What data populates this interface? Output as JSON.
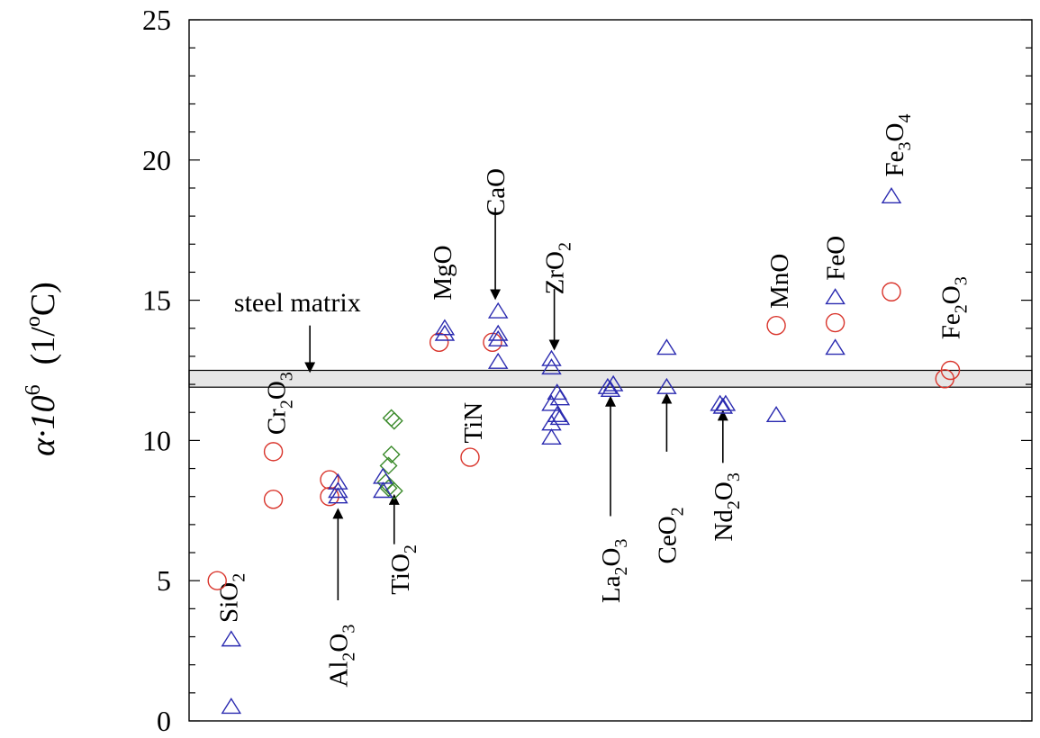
{
  "chart_data": {
    "type": "scatter",
    "title": "",
    "xlabel": "",
    "ylabel": {
      "prefix": "α·10",
      "exponent": "6",
      "unit_open": "(1/",
      "unit_super": "o",
      "unit_close": "C)"
    },
    "ylim": [
      0,
      25
    ],
    "y_ticks": [
      "0",
      "5",
      "10",
      "15",
      "20",
      "25"
    ],
    "grid": false,
    "legend": "none",
    "band": {
      "label": "steel matrix",
      "range": [
        11.9,
        12.5
      ],
      "color": "#e6e6e6"
    },
    "colors": {
      "circle": "#d9342b",
      "triangle": "#2a2ab0",
      "diamond": "#3a8a2a",
      "axis": "#000000"
    },
    "groups": [
      {
        "name": "SiO",
        "sub": "2",
        "points": [
          {
            "x": 1.0,
            "y": 5.0,
            "marker": "circle"
          },
          {
            "x": 1.25,
            "y": 2.9,
            "marker": "triangle"
          },
          {
            "x": 1.25,
            "y": 0.5,
            "marker": "triangle"
          }
        ]
      },
      {
        "name": "Cr",
        "sub": "2",
        "name2": "O",
        "sub2": "3",
        "points": [
          {
            "x": 2.0,
            "y": 9.6,
            "marker": "circle"
          },
          {
            "x": 2.0,
            "y": 7.9,
            "marker": "circle"
          }
        ]
      },
      {
        "name": "Al",
        "sub": "2",
        "name2": "O",
        "sub2": "3",
        "points": [
          {
            "x": 3.0,
            "y": 8.6,
            "marker": "circle"
          },
          {
            "x": 3.0,
            "y": 8.0,
            "marker": "circle"
          },
          {
            "x": 3.15,
            "y": 8.5,
            "marker": "triangle"
          },
          {
            "x": 3.15,
            "y": 8.2,
            "marker": "triangle"
          },
          {
            "x": 3.15,
            "y": 8.0,
            "marker": "triangle"
          }
        ]
      },
      {
        "name": "TiO",
        "sub": "2",
        "points": [
          {
            "x": 4.1,
            "y": 10.8,
            "marker": "diamond"
          },
          {
            "x": 4.15,
            "y": 10.7,
            "marker": "diamond"
          },
          {
            "x": 4.1,
            "y": 9.5,
            "marker": "diamond"
          },
          {
            "x": 4.05,
            "y": 9.1,
            "marker": "diamond"
          },
          {
            "x": 4.0,
            "y": 8.5,
            "marker": "diamond"
          },
          {
            "x": 4.05,
            "y": 8.3,
            "marker": "diamond"
          },
          {
            "x": 4.15,
            "y": 8.2,
            "marker": "diamond"
          },
          {
            "x": 3.95,
            "y": 8.7,
            "marker": "triangle"
          },
          {
            "x": 3.95,
            "y": 8.2,
            "marker": "triangle"
          }
        ]
      },
      {
        "name": "MgO",
        "points": [
          {
            "x": 4.95,
            "y": 13.5,
            "marker": "circle"
          },
          {
            "x": 5.05,
            "y": 14.0,
            "marker": "triangle"
          },
          {
            "x": 5.05,
            "y": 13.8,
            "marker": "triangle"
          }
        ]
      },
      {
        "name": "TiN",
        "points": [
          {
            "x": 5.5,
            "y": 9.4,
            "marker": "circle"
          }
        ]
      },
      {
        "name": "CaO",
        "points": [
          {
            "x": 5.9,
            "y": 13.5,
            "marker": "circle"
          },
          {
            "x": 6.0,
            "y": 14.6,
            "marker": "triangle"
          },
          {
            "x": 6.0,
            "y": 13.8,
            "marker": "triangle"
          },
          {
            "x": 6.0,
            "y": 13.6,
            "marker": "triangle"
          },
          {
            "x": 6.0,
            "y": 12.8,
            "marker": "triangle"
          }
        ]
      },
      {
        "name": "ZrO",
        "sub": "2",
        "points": [
          {
            "x": 6.95,
            "y": 12.9,
            "marker": "triangle"
          },
          {
            "x": 6.95,
            "y": 12.6,
            "marker": "triangle"
          },
          {
            "x": 7.05,
            "y": 11.7,
            "marker": "triangle"
          },
          {
            "x": 7.1,
            "y": 11.5,
            "marker": "triangle"
          },
          {
            "x": 6.95,
            "y": 11.3,
            "marker": "triangle"
          },
          {
            "x": 7.05,
            "y": 10.9,
            "marker": "triangle"
          },
          {
            "x": 7.1,
            "y": 10.8,
            "marker": "triangle"
          },
          {
            "x": 6.95,
            "y": 10.6,
            "marker": "triangle"
          },
          {
            "x": 6.95,
            "y": 10.1,
            "marker": "triangle"
          }
        ]
      },
      {
        "name": "La",
        "sub": "2",
        "name2": "O",
        "sub2": "3",
        "points": [
          {
            "x": 7.95,
            "y": 11.9,
            "marker": "triangle"
          },
          {
            "x": 8.05,
            "y": 12.0,
            "marker": "triangle"
          },
          {
            "x": 8.0,
            "y": 11.8,
            "marker": "triangle"
          }
        ]
      },
      {
        "name": "CeO",
        "sub": "2",
        "points": [
          {
            "x": 9.0,
            "y": 13.3,
            "marker": "triangle"
          },
          {
            "x": 9.0,
            "y": 11.9,
            "marker": "triangle"
          }
        ]
      },
      {
        "name": "Nd",
        "sub": "2",
        "name2": "O",
        "sub2": "3",
        "points": [
          {
            "x": 9.95,
            "y": 11.3,
            "marker": "triangle"
          },
          {
            "x": 10.05,
            "y": 11.3,
            "marker": "triangle"
          },
          {
            "x": 10.0,
            "y": 11.2,
            "marker": "triangle"
          }
        ]
      },
      {
        "name": "MnO",
        "points": [
          {
            "x": 10.95,
            "y": 14.1,
            "marker": "circle"
          },
          {
            "x": 10.95,
            "y": 10.9,
            "marker": "triangle"
          }
        ]
      },
      {
        "name": "FeO",
        "points": [
          {
            "x": 12.0,
            "y": 14.2,
            "marker": "circle"
          },
          {
            "x": 12.0,
            "y": 15.1,
            "marker": "triangle"
          },
          {
            "x": 12.0,
            "y": 13.3,
            "marker": "triangle"
          }
        ]
      },
      {
        "name": "Fe",
        "sub": "3",
        "name2": "O",
        "sub2": "4",
        "points": [
          {
            "x": 13.0,
            "y": 15.3,
            "marker": "circle"
          },
          {
            "x": 13.0,
            "y": 18.7,
            "marker": "triangle"
          }
        ]
      },
      {
        "name": "Fe",
        "sub": "2",
        "name2": "O",
        "sub2": "3",
        "points": [
          {
            "x": 13.95,
            "y": 12.2,
            "marker": "circle"
          },
          {
            "x": 14.05,
            "y": 12.5,
            "marker": "circle"
          }
        ]
      }
    ]
  }
}
